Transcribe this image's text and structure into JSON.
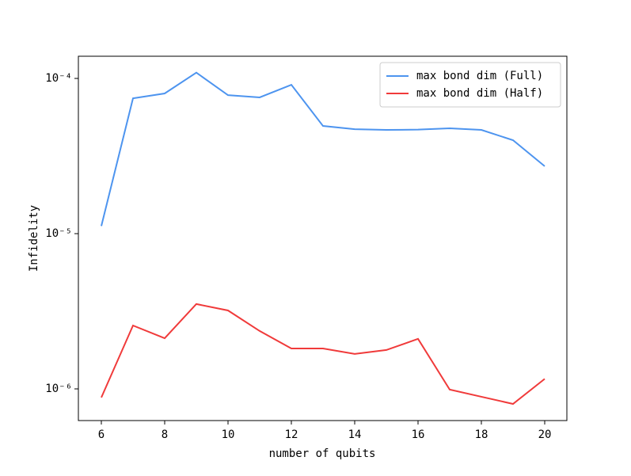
{
  "chart_data": {
    "type": "line",
    "xlabel": "number of qubits",
    "ylabel": "Infidelity",
    "x": [
      6,
      7,
      8,
      9,
      10,
      11,
      12,
      13,
      14,
      15,
      16,
      17,
      18,
      19,
      20
    ],
    "series": [
      {
        "name": "max bond dim (Full)",
        "color": "#4d94ef",
        "values": [
          1.12e-05,
          7.45e-05,
          8e-05,
          0.000109,
          7.8e-05,
          7.55e-05,
          9.1e-05,
          4.94e-05,
          4.71e-05,
          4.66e-05,
          4.68e-05,
          4.77e-05,
          4.66e-05,
          4e-05,
          2.72e-05
        ]
      },
      {
        "name": "max bond dim (Half)",
        "color": "#f03a3a",
        "values": [
          8.8e-07,
          2.56e-06,
          2.12e-06,
          3.52e-06,
          3.2e-06,
          2.36e-06,
          1.82e-06,
          1.82e-06,
          1.68e-06,
          1.78e-06,
          2.1e-06,
          9.9e-07,
          8.9e-07,
          8e-07,
          1.16e-06
        ]
      }
    ],
    "xlim": [
      5.275,
      20.7
    ],
    "ylim": [
      6.25e-07,
      0.000139
    ],
    "xticks": [
      6,
      8,
      10,
      12,
      14,
      16,
      18,
      20
    ],
    "yticks": [
      {
        "value": 1e-06,
        "label": "10⁻⁶"
      },
      {
        "value": 1e-05,
        "label": "10⁻⁵"
      },
      {
        "value": 0.0001,
        "label": "10⁻⁴"
      }
    ],
    "yscale": "log",
    "legend": "upper right"
  }
}
